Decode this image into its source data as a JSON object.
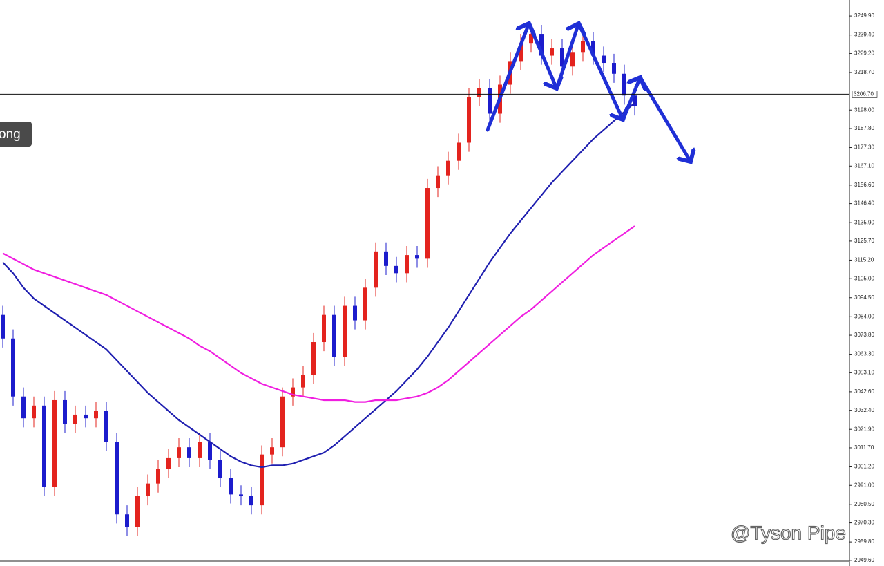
{
  "chart_data": {
    "type": "candlestick",
    "ylim": [
      2946.5,
      3258.7
    ],
    "yticks": [
      {
        "value": 2949.6,
        "label": "2949.60"
      },
      {
        "value": 2959.8,
        "label": "2959.80"
      },
      {
        "value": 2970.3,
        "label": "2970.30"
      },
      {
        "value": 2980.5,
        "label": "2980.50"
      },
      {
        "value": 2991.0,
        "label": "2991.00"
      },
      {
        "value": 3001.2,
        "label": "3001.20"
      },
      {
        "value": 3011.7,
        "label": "3011.70"
      },
      {
        "value": 3021.9,
        "label": "3021.90"
      },
      {
        "value": 3032.4,
        "label": "3032.40"
      },
      {
        "value": 3042.6,
        "label": "3042.60"
      },
      {
        "value": 3053.1,
        "label": "3053.10"
      },
      {
        "value": 3063.3,
        "label": "3063.30"
      },
      {
        "value": 3073.8,
        "label": "3073.80"
      },
      {
        "value": 3084.0,
        "label": "3084.00"
      },
      {
        "value": 3094.5,
        "label": "3094.50"
      },
      {
        "value": 3105.0,
        "label": "3105.00"
      },
      {
        "value": 3115.2,
        "label": "3115.20"
      },
      {
        "value": 3125.7,
        "label": "3125.70"
      },
      {
        "value": 3135.9,
        "label": "3135.90"
      },
      {
        "value": 3146.4,
        "label": "3146.40"
      },
      {
        "value": 3156.6,
        "label": "3156.60"
      },
      {
        "value": 3167.1,
        "label": "3167.10"
      },
      {
        "value": 3177.3,
        "label": "3177.30"
      },
      {
        "value": 3187.8,
        "label": "3187.80"
      },
      {
        "value": 3198.0,
        "label": "3198.00"
      },
      {
        "value": 3218.7,
        "label": "3218.70"
      },
      {
        "value": 3229.2,
        "label": "3229.20"
      },
      {
        "value": 3239.4,
        "label": "3239.40"
      },
      {
        "value": 3249.9,
        "label": "3249.90"
      }
    ],
    "current_price": {
      "value": 3206.7,
      "label": "3206.70"
    },
    "up_color": "#e3231e",
    "down_color": "#1c1ccc",
    "ohlc": {
      "open": [
        3085,
        3072,
        3040,
        3028,
        3035,
        2990,
        3038,
        3025,
        3030,
        3028,
        3032,
        3015,
        2975,
        2968,
        2985,
        2992,
        3000,
        3006,
        3012,
        3006,
        3015,
        3005,
        2995,
        2986,
        2985,
        2980,
        3008,
        3012,
        3040,
        3045,
        3052,
        3070,
        3085,
        3062,
        3090,
        3082,
        3100,
        3120,
        3112,
        3108,
        3118,
        3116,
        3155,
        3162,
        3170,
        3180,
        3205,
        3210,
        3196,
        3212,
        3225,
        3235,
        3240,
        3228,
        3232,
        3222,
        3230,
        3236,
        3228,
        3224,
        3218,
        3206
      ],
      "high": [
        3090,
        3077,
        3045,
        3040,
        3040,
        3043,
        3043,
        3035,
        3035,
        3037,
        3037,
        3020,
        2980,
        2990,
        2997,
        3005,
        3011,
        3017,
        3017,
        3020,
        3020,
        3010,
        3000,
        2991,
        2990,
        3013,
        3017,
        3045,
        3050,
        3057,
        3075,
        3090,
        3090,
        3095,
        3095,
        3105,
        3125,
        3125,
        3117,
        3123,
        3123,
        3160,
        3167,
        3175,
        3185,
        3210,
        3215,
        3215,
        3217,
        3230,
        3240,
        3245,
        3245,
        3237,
        3237,
        3235,
        3241,
        3241,
        3233,
        3229,
        3223,
        3211
      ],
      "low": [
        3067,
        3035,
        3023,
        3023,
        2985,
        2985,
        3020,
        3020,
        3023,
        3023,
        3010,
        2970,
        2963,
        2963,
        2980,
        2987,
        2995,
        3001,
        3001,
        3001,
        3000,
        2990,
        2981,
        2980,
        2975,
        2975,
        3003,
        3007,
        3035,
        3040,
        3047,
        3065,
        3057,
        3057,
        3077,
        3077,
        3095,
        3107,
        3103,
        3103,
        3111,
        3111,
        3150,
        3157,
        3165,
        3175,
        3200,
        3191,
        3191,
        3207,
        3220,
        3230,
        3223,
        3223,
        3217,
        3217,
        3225,
        3223,
        3219,
        3213,
        3201,
        3195
      ],
      "close": [
        3072,
        3040,
        3028,
        3035,
        2990,
        3038,
        3025,
        3030,
        3028,
        3032,
        3015,
        2975,
        2968,
        2985,
        2992,
        3000,
        3006,
        3012,
        3006,
        3015,
        3005,
        2995,
        2986,
        2985,
        2980,
        3008,
        3012,
        3040,
        3045,
        3052,
        3070,
        3085,
        3062,
        3090,
        3082,
        3100,
        3120,
        3112,
        3108,
        3118,
        3116,
        3155,
        3162,
        3170,
        3180,
        3205,
        3210,
        3196,
        3212,
        3225,
        3235,
        3240,
        3228,
        3232,
        3222,
        3230,
        3236,
        3228,
        3224,
        3218,
        3206,
        3200
      ]
    },
    "moving_averages": [
      {
        "color": "#1f1fb0",
        "values": [
          3114,
          3108,
          3100,
          3094,
          3090,
          3086,
          3082,
          3078,
          3074,
          3070,
          3066,
          3060,
          3054,
          3048,
          3042,
          3037,
          3032,
          3027,
          3023,
          3019,
          3015,
          3011,
          3007,
          3004,
          3002,
          3001,
          3002,
          3002,
          3003,
          3005,
          3007,
          3009,
          3013,
          3018,
          3023,
          3028,
          3033,
          3038,
          3043,
          3049,
          3055,
          3062,
          3070,
          3078,
          3087,
          3096,
          3105,
          3114,
          3122,
          3130,
          3137,
          3144,
          3151,
          3158,
          3164,
          3170,
          3176,
          3182,
          3187,
          3192,
          3197,
          3202
        ]
      },
      {
        "color": "#f01ee0",
        "values": [
          3119,
          3116,
          3113,
          3110,
          3108,
          3106,
          3104,
          3102,
          3100,
          3098,
          3096,
          3093,
          3090,
          3087,
          3084,
          3081,
          3078,
          3075,
          3072,
          3068,
          3065,
          3061,
          3057,
          3053,
          3050,
          3047,
          3045,
          3043,
          3041,
          3040,
          3039,
          3038,
          3038,
          3038,
          3037,
          3037,
          3038,
          3038,
          3038,
          3039,
          3040,
          3042,
          3045,
          3049,
          3054,
          3059,
          3064,
          3069,
          3074,
          3079,
          3084,
          3088,
          3093,
          3098,
          3103,
          3108,
          3113,
          3118,
          3122,
          3126,
          3130,
          3134
        ]
      }
    ],
    "tooltip": "ong",
    "watermark": "@Tyson Pipe"
  }
}
